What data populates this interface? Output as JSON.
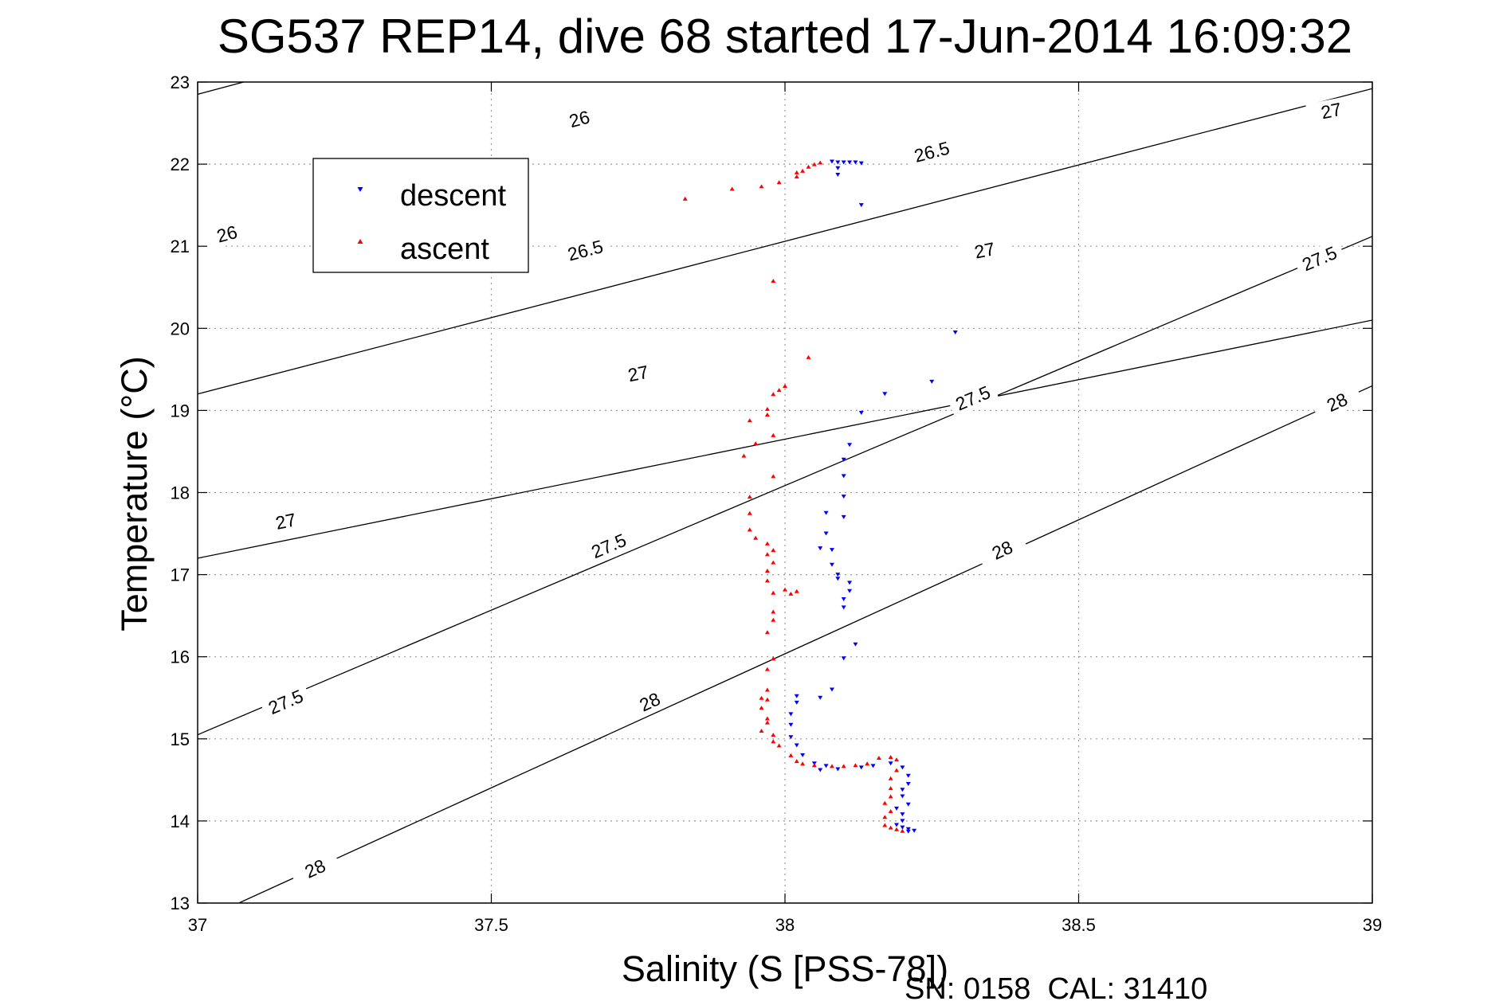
{
  "chart_data": {
    "type": "scatter",
    "title": "SG537 REP14, dive 68 started 17-Jun-2014 16:09:32",
    "xlabel": "Salinity (S [PSS-78])",
    "ylabel": "Temperature (°C)",
    "xlim": [
      37,
      39
    ],
    "ylim": [
      13,
      23
    ],
    "xticks": [
      37,
      37.5,
      38,
      38.5,
      39
    ],
    "xtick_labels": [
      "37",
      "37.5",
      "38",
      "38.5",
      "39"
    ],
    "yticks": [
      13,
      14,
      15,
      16,
      17,
      18,
      19,
      20,
      21,
      22,
      23
    ],
    "ytick_labels": [
      "13",
      "14",
      "15",
      "16",
      "17",
      "18",
      "19",
      "20",
      "21",
      "22",
      "23"
    ],
    "grid": true,
    "legend_position": "top-left",
    "footer": "SN: 0158  CAL: 31410",
    "contours": [
      {
        "level": 26,
        "label": "26",
        "p1": [
          37,
          22.85
        ],
        "p2": [
          38.8,
          26.3
        ],
        "label_positions": [
          [
            37.05,
            21.15
          ],
          [
            37.65,
            22.55
          ]
        ]
      },
      {
        "level": 26.5,
        "label": "26.5",
        "p1": [
          37,
          19.2
        ],
        "p2": [
          39,
          22.92
        ],
        "label_positions": [
          [
            37.66,
            20.95
          ],
          [
            38.25,
            22.15
          ]
        ]
      },
      {
        "level": 27,
        "label": "27",
        "p1": [
          37,
          17.2
        ],
        "p2": [
          39,
          20.1
        ],
        "label_positions": [
          [
            37.15,
            17.65
          ],
          [
            37.75,
            19.45
          ],
          [
            38.34,
            20.95
          ],
          [
            38.93,
            22.65
          ]
        ]
      },
      {
        "level": 27.5,
        "label": "27.5",
        "p1": [
          37,
          15.05
        ],
        "p2": [
          39,
          21.12
        ],
        "label_positions": [
          [
            37.15,
            15.45
          ],
          [
            37.7,
            17.35
          ],
          [
            38.32,
            19.15
          ],
          [
            38.91,
            20.85
          ]
        ]
      },
      {
        "level": 28,
        "label": "28",
        "p1": [
          37.07,
          13
        ],
        "p2": [
          39,
          19.3
        ],
        "label_positions": [
          [
            37.2,
            13.42
          ],
          [
            37.77,
            15.45
          ],
          [
            38.37,
            17.3
          ],
          [
            38.94,
            19.1
          ]
        ]
      }
    ],
    "series": [
      {
        "name": "descent",
        "color": "#0000ff",
        "marker": "triangle-down",
        "points": [
          [
            38.08,
            22.03
          ],
          [
            38.09,
            22.02
          ],
          [
            38.1,
            22.02
          ],
          [
            38.11,
            22.02
          ],
          [
            38.12,
            22.02
          ],
          [
            38.13,
            22.01
          ],
          [
            38.09,
            21.95
          ],
          [
            38.09,
            21.87
          ],
          [
            38.13,
            21.5
          ],
          [
            38.29,
            19.95
          ],
          [
            38.25,
            19.35
          ],
          [
            38.17,
            19.2
          ],
          [
            38.13,
            18.97
          ],
          [
            38.11,
            18.58
          ],
          [
            38.1,
            18.4
          ],
          [
            38.1,
            18.2
          ],
          [
            38.1,
            17.95
          ],
          [
            38.07,
            17.75
          ],
          [
            38.1,
            17.7
          ],
          [
            38.07,
            17.5
          ],
          [
            38.06,
            17.32
          ],
          [
            38.08,
            17.3
          ],
          [
            38.08,
            17.12
          ],
          [
            38.09,
            17.0
          ],
          [
            38.09,
            16.95
          ],
          [
            38.11,
            16.9
          ],
          [
            38.11,
            16.8
          ],
          [
            38.1,
            16.7
          ],
          [
            38.1,
            16.6
          ],
          [
            38.12,
            16.15
          ],
          [
            38.1,
            15.98
          ],
          [
            38.08,
            15.6
          ],
          [
            38.06,
            15.5
          ],
          [
            38.02,
            15.52
          ],
          [
            38.02,
            15.44
          ],
          [
            38.01,
            15.3
          ],
          [
            38.01,
            15.17
          ],
          [
            38.01,
            15.02
          ],
          [
            38.02,
            14.92
          ],
          [
            38.03,
            14.8
          ],
          [
            38.05,
            14.7
          ],
          [
            38.07,
            14.67
          ],
          [
            38.09,
            14.63
          ],
          [
            38.06,
            14.62
          ],
          [
            38.13,
            14.65
          ],
          [
            38.15,
            14.67
          ],
          [
            38.18,
            14.7
          ],
          [
            38.2,
            14.65
          ],
          [
            38.21,
            14.55
          ],
          [
            38.21,
            14.45
          ],
          [
            38.2,
            14.38
          ],
          [
            38.2,
            14.3
          ],
          [
            38.21,
            14.2
          ],
          [
            38.19,
            14.15
          ],
          [
            38.2,
            14.08
          ],
          [
            38.2,
            14.0
          ],
          [
            38.19,
            13.95
          ],
          [
            38.2,
            13.92
          ],
          [
            38.21,
            13.9
          ],
          [
            38.22,
            13.88
          ],
          [
            38.21,
            13.87
          ]
        ]
      },
      {
        "name": "ascent",
        "color": "#ff0000",
        "marker": "triangle-up",
        "points": [
          [
            37.83,
            21.58
          ],
          [
            37.91,
            21.7
          ],
          [
            37.96,
            21.73
          ],
          [
            37.99,
            21.78
          ],
          [
            38.02,
            21.85
          ],
          [
            38.02,
            21.9
          ],
          [
            38.03,
            21.92
          ],
          [
            38.04,
            21.97
          ],
          [
            38.05,
            22.0
          ],
          [
            38.06,
            22.02
          ],
          [
            37.98,
            20.58
          ],
          [
            38.04,
            19.65
          ],
          [
            38.0,
            19.3
          ],
          [
            37.99,
            19.25
          ],
          [
            37.98,
            19.2
          ],
          [
            37.97,
            19.02
          ],
          [
            37.97,
            18.95
          ],
          [
            37.94,
            18.88
          ],
          [
            37.98,
            18.7
          ],
          [
            37.95,
            18.6
          ],
          [
            37.93,
            18.45
          ],
          [
            37.98,
            18.2
          ],
          [
            37.94,
            17.95
          ],
          [
            37.94,
            17.75
          ],
          [
            37.94,
            17.55
          ],
          [
            37.95,
            17.45
          ],
          [
            37.97,
            17.38
          ],
          [
            37.98,
            17.3
          ],
          [
            37.97,
            17.25
          ],
          [
            37.98,
            17.15
          ],
          [
            37.97,
            17.05
          ],
          [
            37.97,
            16.93
          ],
          [
            37.98,
            16.78
          ],
          [
            38.0,
            16.82
          ],
          [
            38.01,
            16.77
          ],
          [
            38.02,
            16.8
          ],
          [
            37.98,
            16.55
          ],
          [
            37.98,
            16.45
          ],
          [
            37.97,
            16.3
          ],
          [
            37.98,
            15.98
          ],
          [
            37.97,
            15.85
          ],
          [
            37.97,
            15.6
          ],
          [
            37.96,
            15.5
          ],
          [
            37.97,
            15.48
          ],
          [
            37.96,
            15.38
          ],
          [
            37.97,
            15.25
          ],
          [
            37.96,
            15.1
          ],
          [
            37.97,
            15.2
          ],
          [
            37.98,
            15.05
          ],
          [
            37.98,
            14.97
          ],
          [
            37.99,
            14.92
          ],
          [
            38.01,
            14.8
          ],
          [
            38.02,
            14.73
          ],
          [
            38.03,
            14.7
          ],
          [
            38.05,
            14.68
          ],
          [
            38.08,
            14.67
          ],
          [
            38.1,
            14.67
          ],
          [
            38.12,
            14.68
          ],
          [
            38.14,
            14.7
          ],
          [
            38.16,
            14.77
          ],
          [
            38.18,
            14.78
          ],
          [
            38.19,
            14.75
          ],
          [
            38.19,
            14.62
          ],
          [
            38.18,
            14.52
          ],
          [
            38.18,
            14.4
          ],
          [
            38.18,
            14.3
          ],
          [
            38.17,
            14.22
          ],
          [
            38.18,
            14.12
          ],
          [
            38.17,
            14.05
          ],
          [
            38.17,
            13.95
          ],
          [
            38.18,
            13.92
          ],
          [
            38.19,
            13.9
          ],
          [
            38.2,
            13.88
          ]
        ]
      }
    ]
  }
}
